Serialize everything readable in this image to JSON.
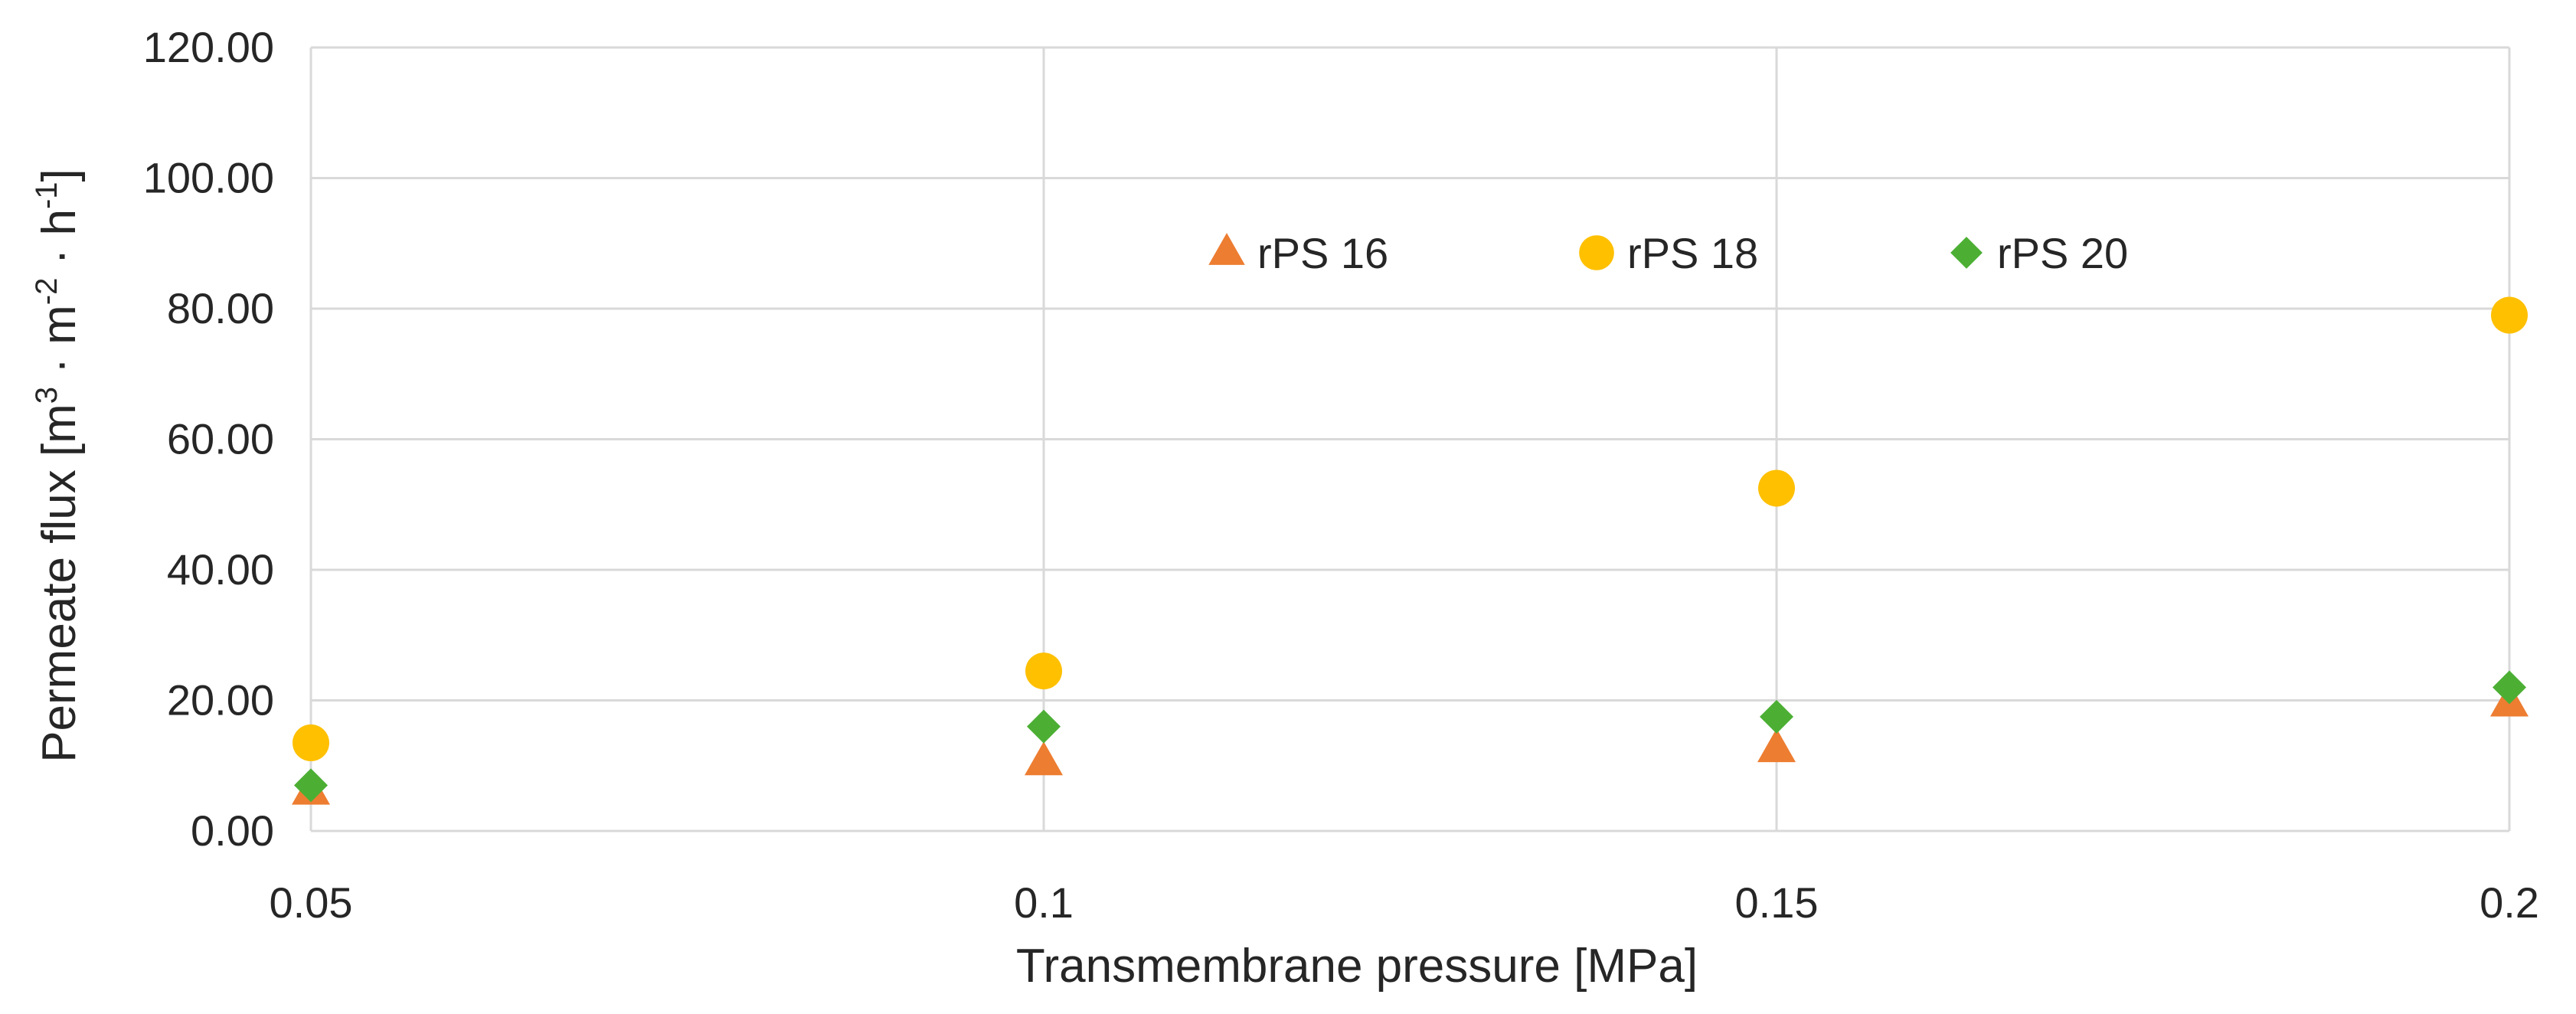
{
  "chart_data": {
    "type": "scatter",
    "title": "",
    "xlabel": "Transmembrane pressure [MPa]",
    "ylabel_parts": {
      "prefix": "Permeate flux [m",
      "sup1": "3",
      "mid1": " · m",
      "sup2": "-2",
      "mid2": " · h",
      "sup3": "-1",
      "suffix": "]"
    },
    "x": [
      0.05,
      0.1,
      0.15,
      0.2
    ],
    "x_tick_labels": [
      "0.05",
      "0.1",
      "0.15",
      "0.2"
    ],
    "y_tick_labels": [
      "0.00",
      "20.00",
      "40.00",
      "60.00",
      "80.00",
      "100.00",
      "120.00"
    ],
    "xlim": [
      0.05,
      0.2
    ],
    "ylim": [
      0,
      120
    ],
    "y_step": 20,
    "grid": true,
    "legend_position": "top-center inside plot",
    "series": [
      {
        "name": "rPS 16",
        "marker": "triangle",
        "color": "#ed7d31",
        "values": [
          6,
          10.5,
          12.5,
          19.5
        ]
      },
      {
        "name": "rPS 18",
        "marker": "circle",
        "color": "#ffc000",
        "values": [
          13.5,
          24.5,
          52.5,
          79
        ]
      },
      {
        "name": "rPS 20",
        "marker": "diamond",
        "color": "#4caf34",
        "values": [
          7,
          16,
          17.5,
          22
        ]
      }
    ]
  }
}
